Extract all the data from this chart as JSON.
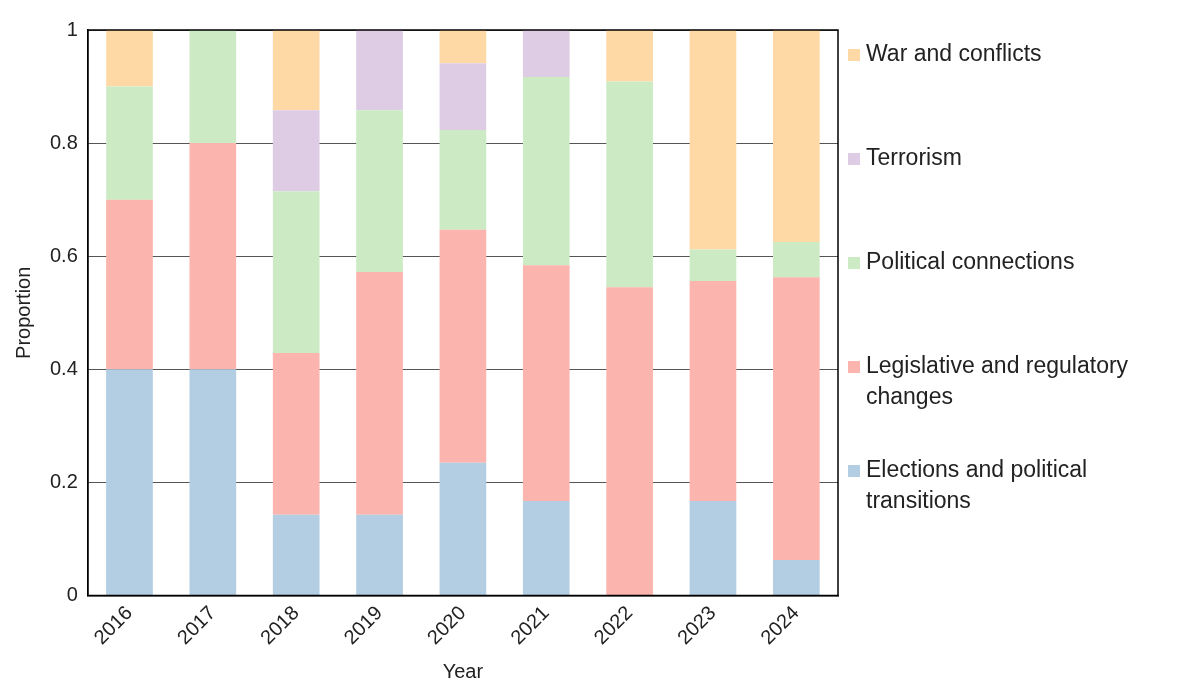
{
  "chart_data": {
    "type": "bar",
    "stacked": true,
    "xlabel": "Year",
    "ylabel": "Proportion",
    "categories": [
      "2016",
      "2017",
      "2018",
      "2019",
      "2020",
      "2021",
      "2022",
      "2023",
      "2024"
    ],
    "ylim": [
      0,
      1
    ],
    "yticks": [
      0,
      0.2,
      0.4,
      0.6,
      0.8,
      1
    ],
    "grid": "y",
    "legend": "right",
    "series": [
      {
        "name": "Elections and political transitions",
        "color": "#b3cde3",
        "values": [
          0.4,
          0.4,
          0.143,
          0.143,
          0.235,
          0.167,
          0,
          0.167,
          0.063
        ]
      },
      {
        "name": "Legislative and regulatory changes",
        "color": "#fbb4ae",
        "values": [
          0.3,
          0.4,
          0.286,
          0.429,
          0.412,
          0.417,
          0.545,
          0.389,
          0.5
        ]
      },
      {
        "name": "Political connections",
        "color": "#ccebc5",
        "values": [
          0.2,
          0.2,
          0.286,
          0.286,
          0.176,
          0.333,
          0.364,
          0.056,
          0.062
        ]
      },
      {
        "name": "Terrorism",
        "color": "#decbe4",
        "values": [
          0,
          0,
          0.143,
          0.143,
          0.118,
          0.083,
          0,
          0,
          0
        ]
      },
      {
        "name": "War and conflicts",
        "color": "#fed9a6",
        "values": [
          0.1,
          0,
          0.143,
          0,
          0.059,
          0,
          0.091,
          0.389,
          0.375
        ]
      }
    ]
  }
}
